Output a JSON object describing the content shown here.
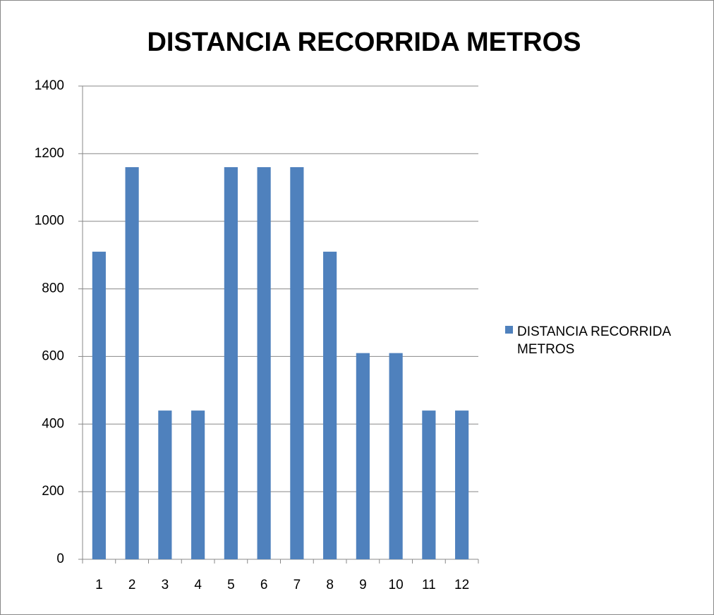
{
  "chart_data": {
    "type": "bar",
    "title": "DISTANCIA RECORRIDA METROS",
    "categories": [
      "1",
      "2",
      "3",
      "4",
      "5",
      "6",
      "7",
      "8",
      "9",
      "10",
      "11",
      "12"
    ],
    "series": [
      {
        "name": "DISTANCIA RECORRIDA METROS",
        "color": "#4f81bd",
        "values": [
          910,
          1160,
          440,
          440,
          1160,
          1160,
          1160,
          910,
          610,
          610,
          440,
          440
        ]
      }
    ],
    "ylim": [
      0,
      1400
    ],
    "yticks": [
      0,
      200,
      400,
      600,
      800,
      1000,
      1200,
      1400
    ],
    "grid": true,
    "legend": "right"
  }
}
